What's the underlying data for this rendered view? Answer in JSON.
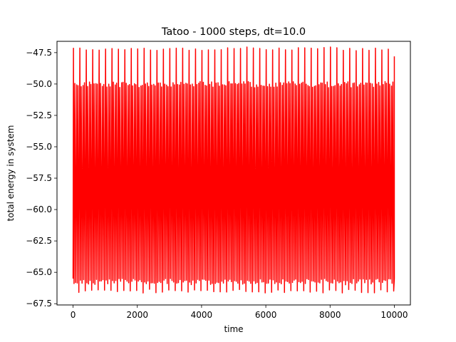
{
  "chart_data": {
    "type": "line",
    "title": "Tatoo - 1000 steps, dt=10.0",
    "xlabel": "time",
    "ylabel": "total energy in system",
    "xlim": [
      -500,
      10500
    ],
    "ylim": [
      -67.6,
      -46.6
    ],
    "xticks": [
      0,
      2000,
      4000,
      6000,
      8000,
      10000
    ],
    "xtick_labels": [
      "0",
      "2000",
      "4000",
      "6000",
      "8000",
      "10000"
    ],
    "yticks": [
      -67.5,
      -65.0,
      -62.5,
      -60.0,
      -57.5,
      -55.0,
      -52.5,
      -50.0,
      -47.5
    ],
    "ytick_labels": [
      "−67.5",
      "−65.0",
      "−62.5",
      "−60.0",
      "−57.5",
      "−55.0",
      "−52.5",
      "−50.0",
      "−47.5"
    ],
    "grid": false,
    "series": [
      {
        "color": "#ff0000",
        "dt": 10.0,
        "steps": 1000,
        "x_range": [
          0,
          10000
        ],
        "oscillation": {
          "period": 100,
          "typical_max": -49.8,
          "peak_max": -47.2,
          "typical_min": -65.5,
          "peak_min": -66.5
        }
      }
    ]
  }
}
